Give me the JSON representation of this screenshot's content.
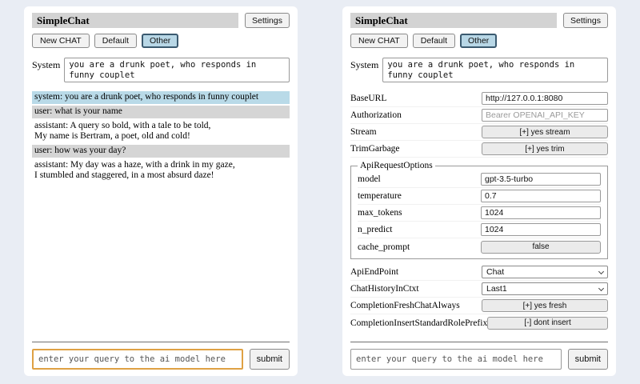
{
  "app": {
    "title": "SimpleChat",
    "settings_label": "Settings",
    "toolbar": {
      "new_chat_label": "New CHAT",
      "session_default_label": "Default",
      "session_other_label": "Other",
      "selected_session": "Other"
    },
    "system_label": "System",
    "system_prompt": "you are a drunk poet, who responds in funny couplet",
    "query_placeholder": "enter your query to the ai model here",
    "submit_label": "submit"
  },
  "chat": {
    "messages": [
      {
        "role": "system",
        "text": "system: you are a drunk poet, who responds in funny couplet"
      },
      {
        "role": "user",
        "text": "user: what is your name"
      },
      {
        "role": "assistant",
        "text": "assistant: A query so bold, with a tale to be told,\nMy name is Bertram, a poet, old and cold!"
      },
      {
        "role": "user",
        "text": "user: how was your day?"
      },
      {
        "role": "assistant",
        "text": "assistant: My day was a haze, with a drink in my gaze,\nI stumbled and staggered, in a most absurd daze!"
      }
    ]
  },
  "settings": {
    "rows": [
      {
        "label": "BaseURL",
        "type": "input",
        "value": "http://127.0.0.1:8080"
      },
      {
        "label": "Authorization",
        "type": "input",
        "placeholder": "Bearer OPENAI_API_KEY"
      },
      {
        "label": "Stream",
        "type": "button",
        "value": "[+] yes stream"
      },
      {
        "label": "TrimGarbage",
        "type": "button",
        "value": "[+] yes trim"
      }
    ],
    "group": {
      "legend": "ApiRequestOptions",
      "rows": [
        {
          "label": "model",
          "type": "input",
          "value": "gpt-3.5-turbo"
        },
        {
          "label": "temperature",
          "type": "input",
          "value": "0.7"
        },
        {
          "label": "max_tokens",
          "type": "input",
          "value": "1024"
        },
        {
          "label": "n_predict",
          "type": "input",
          "value": "1024"
        },
        {
          "label": "cache_prompt",
          "type": "button",
          "value": "false"
        }
      ]
    },
    "rows2": [
      {
        "label": "ApiEndPoint",
        "type": "select",
        "value": "Chat"
      },
      {
        "label": "ChatHistoryInCtxt",
        "type": "select",
        "value": "Last1"
      },
      {
        "label": "CompletionFreshChatAlways",
        "type": "button",
        "value": "[+] yes fresh"
      },
      {
        "label": "CompletionInsertStandardRolePrefix",
        "type": "button",
        "value": "[-] dont insert"
      }
    ]
  },
  "colors": {
    "page_background": "#e9edf4",
    "titlebar_background": "#d3d3d3",
    "selected_session_background": "#b8d7e6",
    "selected_session_border": "#3b5a70",
    "system_message_background": "#b9dae8",
    "user_message_background": "#d5d5d5",
    "focused_input_border": "#dfa144"
  }
}
